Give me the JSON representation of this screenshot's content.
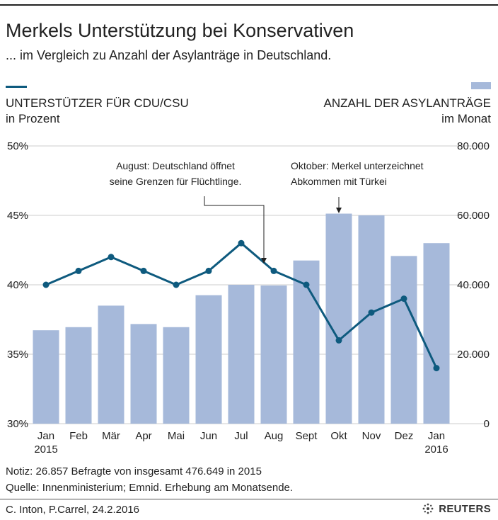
{
  "header": {
    "title": "Merkels Unterstützung bei Konservativen",
    "subtitle": "... im Vergleich zu Anzahl der Asylanträge in Deutschland."
  },
  "colors": {
    "line": "#0e5a7e",
    "bar": "#a6b9da",
    "grid": "#cccccc",
    "text": "#222222"
  },
  "legend": {
    "left_line1": "UNTERSTÜTZER FÜR CDU/CSU",
    "left_line2": "in Prozent",
    "right_line1": "ANZAHL DER  ASYLANTRÄGE",
    "right_line2": "im Monat"
  },
  "chart_data": {
    "type": "bar+line",
    "categories": [
      "Jan",
      "Feb",
      "Mär",
      "Apr",
      "Mai",
      "Jun",
      "Jul",
      "Aug",
      "Sept",
      "Okt",
      "Nov",
      "Dez",
      "Jan"
    ],
    "x_year_labels": [
      "2015",
      "",
      "",
      "",
      "",
      "",
      "",
      "",
      "",
      "",
      "",
      "",
      "2016"
    ],
    "series": [
      {
        "name": "ANZAHL DER  ASYLANTRÄGE",
        "kind": "bar",
        "axis": "right",
        "values": [
          26900,
          27800,
          34000,
          28700,
          27800,
          37000,
          40000,
          39800,
          47000,
          60500,
          60000,
          48300,
          52000
        ]
      },
      {
        "name": "UNTERSTÜTZER FÜR CDU/CSU",
        "kind": "line",
        "axis": "left",
        "values": [
          40,
          41,
          42,
          41,
          40,
          41,
          43,
          41,
          40,
          36,
          38,
          39,
          34
        ]
      }
    ],
    "y_left": {
      "ylim": [
        30,
        50
      ],
      "ticks": [
        "30%",
        "35%",
        "40%",
        "45%",
        "50%"
      ]
    },
    "y_right": {
      "ylim": [
        0,
        80000
      ],
      "ticks": [
        "0",
        "20.000",
        "40.000",
        "60.000",
        "80.000"
      ]
    },
    "grid": true,
    "annotations": [
      {
        "line1": "August: Deutschland öffnet",
        "line2": "seine Grenzen für Flüchtlinge.",
        "target_index": 7
      },
      {
        "line1": "Oktober: Merkel unterzeichnet",
        "line2": "Abkommen mit Türkei",
        "target_index": 9
      }
    ]
  },
  "footer": {
    "note": "Notiz: 26.857 Befragte von insgesamt 476.649 in 2015",
    "source": "Quelle: Innenministerium; Emnid. Erhebung am Monatsende.",
    "credit": "C. Inton, P.Carrel,  24.2.2016",
    "brand": "REUTERS"
  }
}
